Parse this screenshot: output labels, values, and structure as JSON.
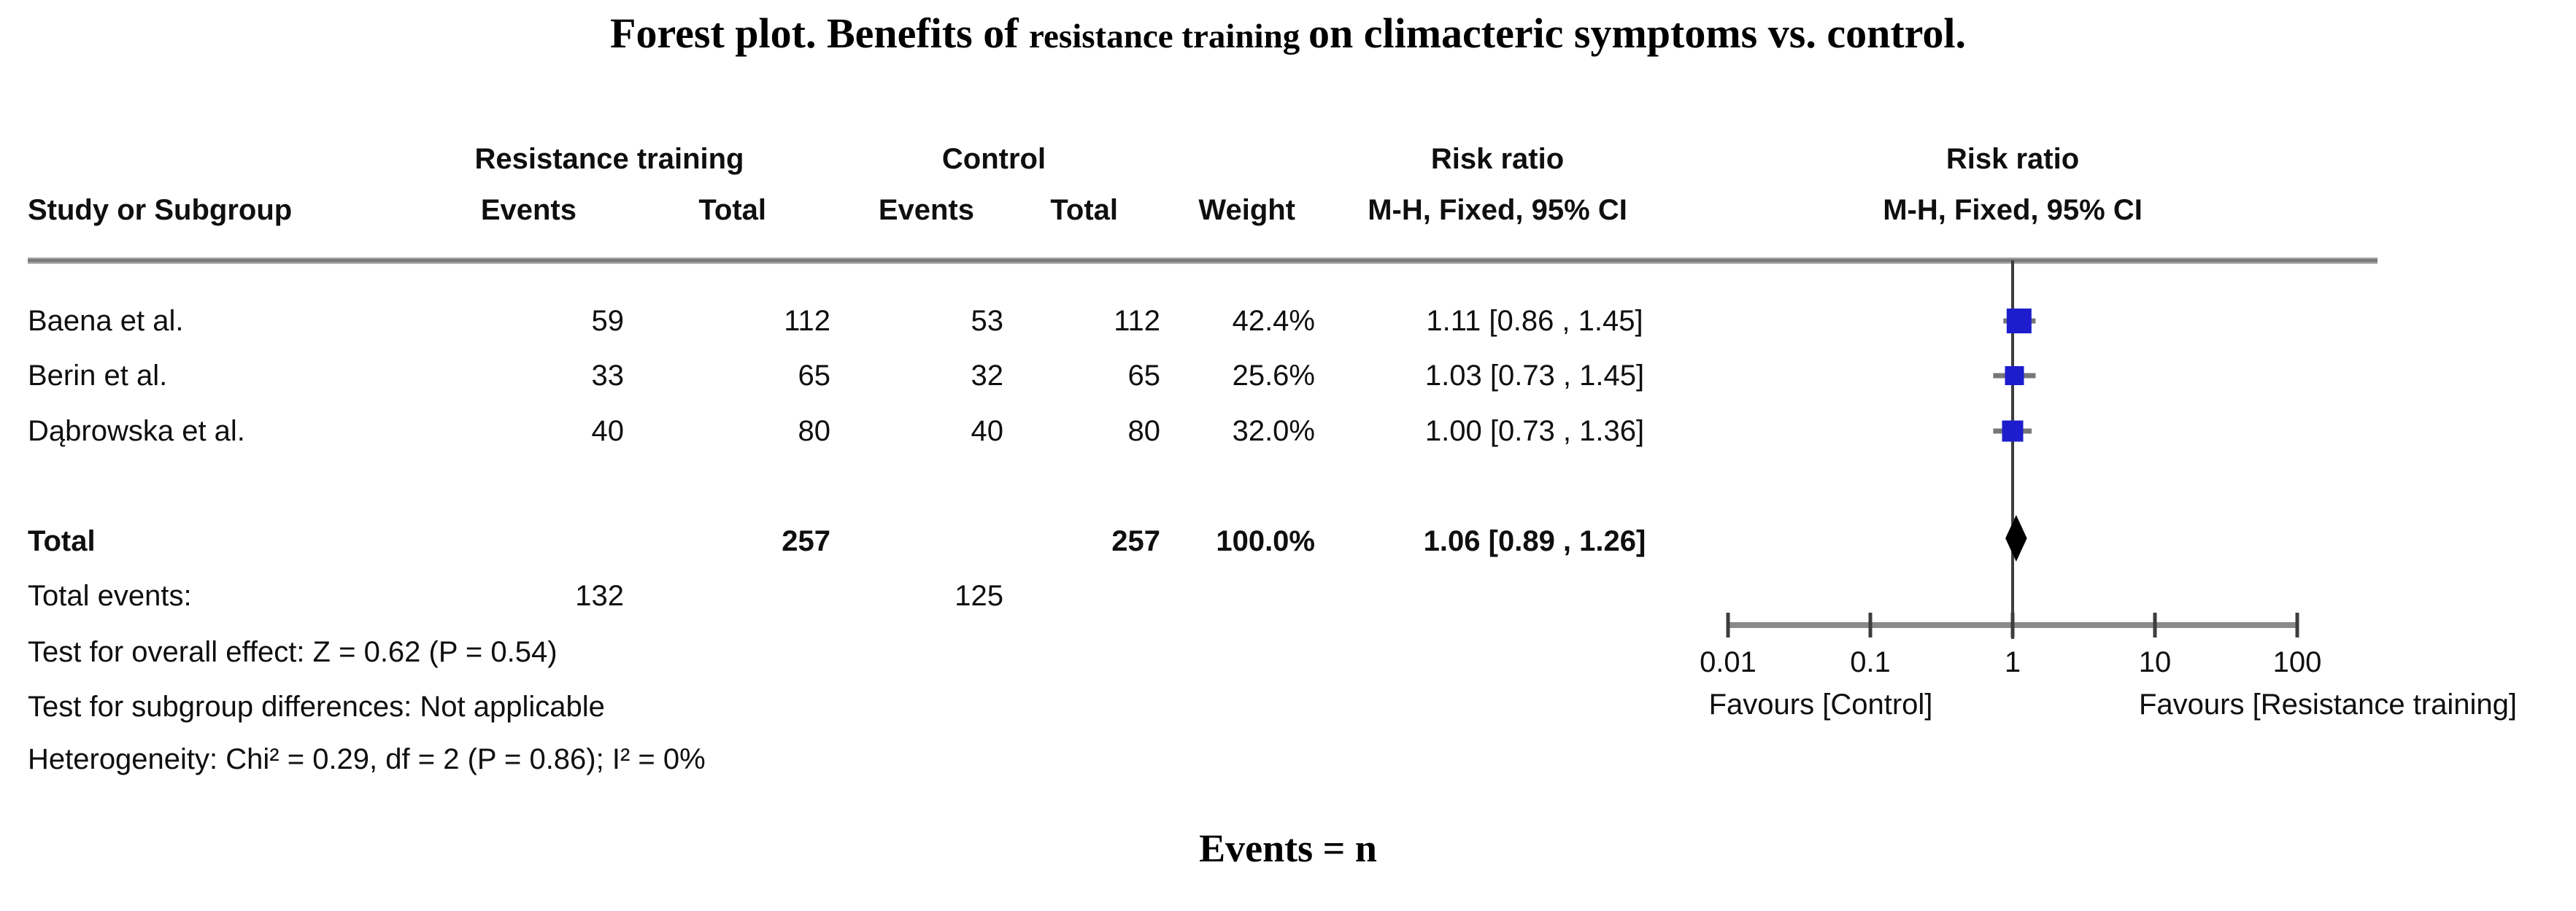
{
  "title": {
    "part1": "Forest plot. Benefits of ",
    "part2": "resistance training ",
    "part3": "on climacteric symptoms vs. control."
  },
  "table": {
    "group_headers": {
      "treatment": "Resistance training",
      "control": "Control",
      "risk_ratio_text": "Risk ratio",
      "risk_ratio_plot": "Risk ratio"
    },
    "column_headers": {
      "study": "Study or Subgroup",
      "events1": "Events",
      "total1": "Total",
      "events2": "Events",
      "total2": "Total",
      "weight": "Weight",
      "ci_text": "M-H, Fixed, 95% CI",
      "ci_plot": "M-H, Fixed, 95% CI"
    },
    "rows": [
      {
        "study": "Baena et al.",
        "events1": "59",
        "total1": "112",
        "events2": "53",
        "total2": "112",
        "weight": "42.4%",
        "rr": "1.11 [0.86 , 1.45]"
      },
      {
        "study": "Berin et al.",
        "events1": "33",
        "total1": "65",
        "events2": "32",
        "total2": "65",
        "weight": "25.6%",
        "rr": "1.03 [0.73 , 1.45]"
      },
      {
        "study": "Dąbrowska et al.",
        "events1": "40",
        "total1": "80",
        "events2": "40",
        "total2": "80",
        "weight": "32.0%",
        "rr": "1.00 [0.73 , 1.36]"
      }
    ],
    "total_row": {
      "label": "Total",
      "total1": "257",
      "total2": "257",
      "weight": "100.0%",
      "rr": "1.06 [0.89 , 1.26]"
    },
    "total_events_row": {
      "label": "Total events:",
      "events1": "132",
      "events2": "125"
    },
    "footnotes": [
      "Test for overall effect: Z = 0.62 (P = 0.54)",
      "Test for subgroup differences: Not applicable",
      "Heterogeneity: Chi² = 0.29, df = 2 (P = 0.86); I² = 0%"
    ]
  },
  "chart_data": {
    "type": "forest",
    "effect_measure": "Risk ratio (M-H, Fixed, 95% CI)",
    "x_axis": {
      "scale": "log10",
      "range": [
        0.01,
        100
      ],
      "ticks": [
        0.01,
        0.1,
        1,
        10,
        100
      ],
      "tick_labels": [
        "0.01",
        "0.1",
        "1",
        "10",
        "100"
      ],
      "favours_left": "Favours [Control]",
      "favours_right": "Favours [Resistance training]"
    },
    "studies": [
      {
        "name": "Baena et al.",
        "rr": 1.11,
        "ci_low": 0.86,
        "ci_high": 1.45,
        "weight_pct": 42.4
      },
      {
        "name": "Berin et al.",
        "rr": 1.03,
        "ci_low": 0.73,
        "ci_high": 1.45,
        "weight_pct": 25.6
      },
      {
        "name": "Dąbrowska et al.",
        "rr": 1.0,
        "ci_low": 0.73,
        "ci_high": 1.36,
        "weight_pct": 32.0
      }
    ],
    "total": {
      "rr": 1.06,
      "ci_low": 0.89,
      "ci_high": 1.26,
      "weight_pct": 100.0
    },
    "null_line": 1,
    "colors": {
      "marker": "#1d1dcd",
      "whisker": "#777777",
      "diamond": "#000000",
      "line": "#3d3d3d",
      "axis": "#8a8a8a"
    }
  },
  "footer": "Events = n"
}
